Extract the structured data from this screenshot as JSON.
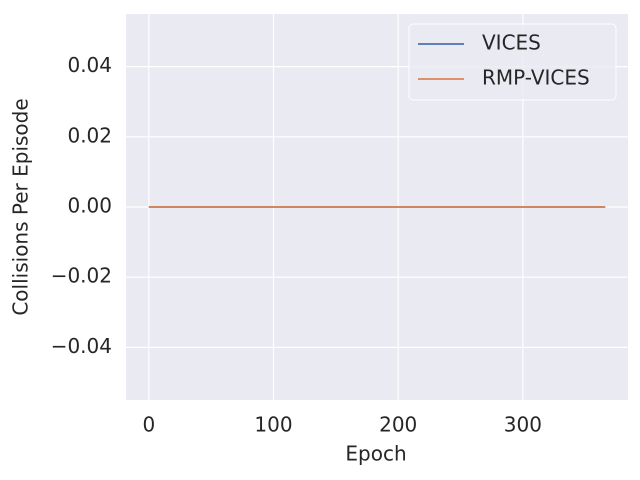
{
  "chart_data": {
    "type": "line",
    "x_label": "Epoch",
    "y_label": "Collisions Per Episode",
    "x": [
      0,
      366
    ],
    "series": [
      {
        "name": "VICES",
        "color": "#4c72b0",
        "values": [
          0,
          0
        ]
      },
      {
        "name": "RMP-VICES",
        "color": "#dd8452",
        "values": [
          0,
          0
        ]
      }
    ],
    "xlim": [
      -18.3,
      384.3
    ],
    "xticks": [
      0,
      100,
      200,
      300
    ],
    "ylim": [
      -0.055,
      0.055
    ],
    "yticks": [
      {
        "value": -0.04,
        "label": "−0.04"
      },
      {
        "value": -0.02,
        "label": "−0.02"
      },
      {
        "value": 0,
        "label": "0.00"
      },
      0.02,
      0.04
    ],
    "grid": true,
    "legend": "upper right"
  }
}
